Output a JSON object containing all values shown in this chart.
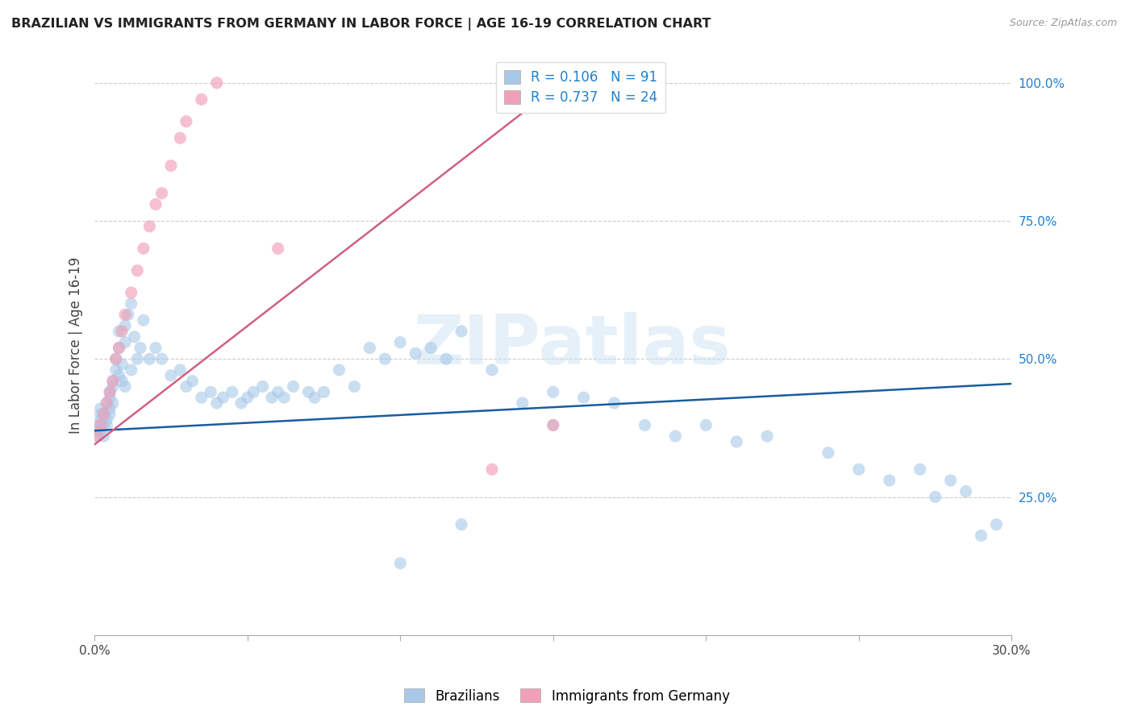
{
  "title": "BRAZILIAN VS IMMIGRANTS FROM GERMANY IN LABOR FORCE | AGE 16-19 CORRELATION CHART",
  "source": "Source: ZipAtlas.com",
  "ylabel": "In Labor Force | Age 16-19",
  "x_min": 0.0,
  "x_max": 0.3,
  "y_min": 0.0,
  "y_max": 1.05,
  "watermark": "ZIPatlas",
  "legend_r1": "R = 0.106",
  "legend_n1": "N = 91",
  "legend_r2": "R = 0.737",
  "legend_n2": "N = 24",
  "color_brazilian": "#a8c8e8",
  "color_german": "#f0a0b8",
  "line_color_brazilian": "#1a5ca0",
  "line_color_german": "#d06080",
  "legend_label1": "Brazilians",
  "legend_label2": "Immigrants from Germany",
  "braz_x": [
    0.001,
    0.001,
    0.001,
    0.002,
    0.002,
    0.002,
    0.002,
    0.003,
    0.003,
    0.003,
    0.004,
    0.004,
    0.004,
    0.005,
    0.005,
    0.005,
    0.005,
    0.006,
    0.006,
    0.006,
    0.007,
    0.007,
    0.008,
    0.008,
    0.008,
    0.009,
    0.009,
    0.01,
    0.01,
    0.01,
    0.011,
    0.012,
    0.012,
    0.013,
    0.014,
    0.015,
    0.016,
    0.018,
    0.02,
    0.022,
    0.025,
    0.028,
    0.03,
    0.032,
    0.035,
    0.038,
    0.04,
    0.042,
    0.045,
    0.048,
    0.05,
    0.052,
    0.055,
    0.058,
    0.06,
    0.062,
    0.065,
    0.07,
    0.072,
    0.075,
    0.08,
    0.085,
    0.09,
    0.095,
    0.1,
    0.105,
    0.11,
    0.115,
    0.12,
    0.13,
    0.14,
    0.15,
    0.16,
    0.17,
    0.18,
    0.19,
    0.2,
    0.21,
    0.22,
    0.24,
    0.25,
    0.26,
    0.27,
    0.275,
    0.28,
    0.285,
    0.29,
    0.295,
    0.15,
    0.12,
    0.1
  ],
  "braz_y": [
    0.37,
    0.38,
    0.36,
    0.4,
    0.39,
    0.37,
    0.41,
    0.38,
    0.4,
    0.36,
    0.42,
    0.39,
    0.38,
    0.44,
    0.41,
    0.4,
    0.43,
    0.46,
    0.45,
    0.42,
    0.5,
    0.48,
    0.55,
    0.52,
    0.47,
    0.49,
    0.46,
    0.53,
    0.56,
    0.45,
    0.58,
    0.6,
    0.48,
    0.54,
    0.5,
    0.52,
    0.57,
    0.5,
    0.52,
    0.5,
    0.47,
    0.48,
    0.45,
    0.46,
    0.43,
    0.44,
    0.42,
    0.43,
    0.44,
    0.42,
    0.43,
    0.44,
    0.45,
    0.43,
    0.44,
    0.43,
    0.45,
    0.44,
    0.43,
    0.44,
    0.48,
    0.45,
    0.52,
    0.5,
    0.53,
    0.51,
    0.52,
    0.5,
    0.55,
    0.48,
    0.42,
    0.44,
    0.43,
    0.42,
    0.38,
    0.36,
    0.38,
    0.35,
    0.36,
    0.33,
    0.3,
    0.28,
    0.3,
    0.25,
    0.28,
    0.26,
    0.18,
    0.2,
    0.38,
    0.2,
    0.13
  ],
  "germ_x": [
    0.001,
    0.002,
    0.003,
    0.004,
    0.005,
    0.006,
    0.007,
    0.008,
    0.009,
    0.01,
    0.012,
    0.014,
    0.016,
    0.018,
    0.02,
    0.022,
    0.025,
    0.028,
    0.03,
    0.035,
    0.04,
    0.06,
    0.13,
    0.15
  ],
  "germ_y": [
    0.36,
    0.38,
    0.4,
    0.42,
    0.44,
    0.46,
    0.5,
    0.52,
    0.55,
    0.58,
    0.62,
    0.66,
    0.7,
    0.74,
    0.78,
    0.8,
    0.85,
    0.9,
    0.93,
    0.97,
    1.0,
    0.7,
    0.3,
    0.38
  ],
  "braz_line_x": [
    0.0,
    0.3
  ],
  "braz_line_y": [
    0.37,
    0.455
  ],
  "germ_line_x": [
    0.0,
    0.155
  ],
  "germ_line_y": [
    0.345,
    1.01
  ]
}
